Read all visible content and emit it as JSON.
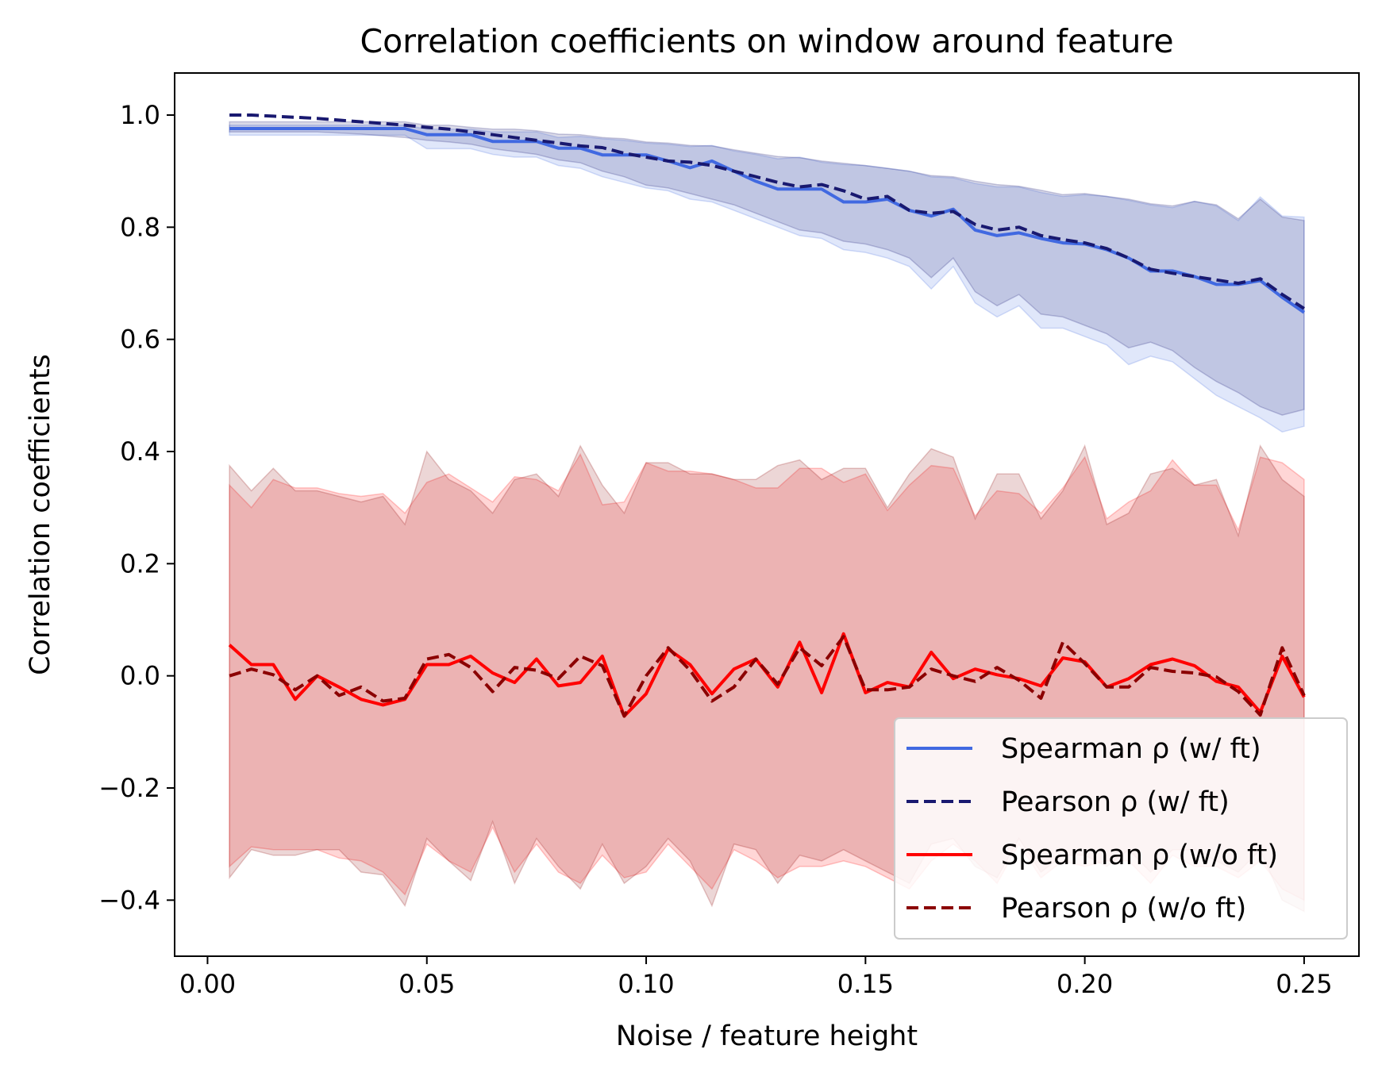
{
  "chart_data": {
    "type": "line",
    "title": "Correlation coefficients on window around feature",
    "xlabel": "Noise / feature height",
    "ylabel": "Correlation coefficients",
    "xlim": [
      -0.0075,
      0.2625
    ],
    "ylim": [
      -0.5,
      1.075
    ],
    "x_ticks": [
      0.0,
      0.05,
      0.1,
      0.15,
      0.2,
      0.25
    ],
    "x_tick_labels": [
      "0.00",
      "0.05",
      "0.10",
      "0.15",
      "0.20",
      "0.25"
    ],
    "y_ticks": [
      -0.4,
      -0.2,
      0.0,
      0.2,
      0.4,
      0.6,
      0.8,
      1.0
    ],
    "y_tick_labels": [
      "−0.4",
      "−0.2",
      "0.0",
      "0.2",
      "0.4",
      "0.6",
      "0.8",
      "1.0"
    ],
    "grid": false,
    "legend_position": "lower-right",
    "x": [
      0.005,
      0.01,
      0.015,
      0.02,
      0.025,
      0.03,
      0.035,
      0.04,
      0.045,
      0.05,
      0.055,
      0.06,
      0.065,
      0.07,
      0.075,
      0.08,
      0.085,
      0.09,
      0.095,
      0.1,
      0.105,
      0.11,
      0.115,
      0.12,
      0.125,
      0.13,
      0.135,
      0.14,
      0.145,
      0.15,
      0.155,
      0.16,
      0.165,
      0.17,
      0.175,
      0.18,
      0.185,
      0.19,
      0.195,
      0.2,
      0.205,
      0.21,
      0.215,
      0.22,
      0.225,
      0.23,
      0.235,
      0.24,
      0.245,
      0.25
    ],
    "series": [
      {
        "name": "Spearman ρ (w/ ft)",
        "color": "#4169e1",
        "dash": "solid",
        "values": [
          0.976,
          0.976,
          0.976,
          0.976,
          0.976,
          0.976,
          0.976,
          0.976,
          0.976,
          0.965,
          0.965,
          0.965,
          0.953,
          0.953,
          0.953,
          0.941,
          0.941,
          0.929,
          0.929,
          0.929,
          0.918,
          0.906,
          0.918,
          0.9,
          0.882,
          0.868,
          0.868,
          0.868,
          0.845,
          0.845,
          0.85,
          0.83,
          0.82,
          0.832,
          0.795,
          0.785,
          0.79,
          0.78,
          0.772,
          0.77,
          0.76,
          0.745,
          0.722,
          0.722,
          0.712,
          0.698,
          0.698,
          0.705,
          0.675,
          0.648
        ],
        "band_upper": [
          0.982,
          0.982,
          0.982,
          0.982,
          0.982,
          0.982,
          0.982,
          0.982,
          0.982,
          0.975,
          0.975,
          0.975,
          0.97,
          0.97,
          0.97,
          0.96,
          0.962,
          0.958,
          0.955,
          0.95,
          0.948,
          0.944,
          0.946,
          0.936,
          0.93,
          0.922,
          0.925,
          0.916,
          0.912,
          0.91,
          0.905,
          0.9,
          0.89,
          0.888,
          0.878,
          0.872,
          0.872,
          0.862,
          0.855,
          0.858,
          0.855,
          0.848,
          0.84,
          0.835,
          0.846,
          0.838,
          0.812,
          0.854,
          0.82,
          0.818
        ],
        "band_lower": [
          0.964,
          0.964,
          0.964,
          0.964,
          0.964,
          0.964,
          0.964,
          0.964,
          0.964,
          0.94,
          0.94,
          0.94,
          0.93,
          0.925,
          0.925,
          0.91,
          0.905,
          0.89,
          0.88,
          0.87,
          0.865,
          0.85,
          0.845,
          0.83,
          0.815,
          0.8,
          0.785,
          0.78,
          0.76,
          0.755,
          0.745,
          0.73,
          0.69,
          0.73,
          0.665,
          0.64,
          0.66,
          0.62,
          0.62,
          0.605,
          0.59,
          0.555,
          0.57,
          0.56,
          0.53,
          0.5,
          0.48,
          0.46,
          0.435,
          0.445
        ]
      },
      {
        "name": "Pearson ρ (w/ ft)",
        "color": "#191970",
        "dash": "dashed",
        "values": [
          1.0,
          1.0,
          0.998,
          0.996,
          0.994,
          0.991,
          0.988,
          0.985,
          0.982,
          0.978,
          0.975,
          0.97,
          0.965,
          0.96,
          0.955,
          0.95,
          0.945,
          0.942,
          0.932,
          0.925,
          0.918,
          0.916,
          0.91,
          0.9,
          0.89,
          0.88,
          0.872,
          0.876,
          0.865,
          0.85,
          0.855,
          0.83,
          0.825,
          0.828,
          0.805,
          0.795,
          0.8,
          0.785,
          0.778,
          0.772,
          0.762,
          0.745,
          0.725,
          0.718,
          0.712,
          0.706,
          0.7,
          0.708,
          0.68,
          0.655
        ],
        "band_upper": [
          0.988,
          0.988,
          0.988,
          0.988,
          0.988,
          0.988,
          0.988,
          0.988,
          0.988,
          0.982,
          0.982,
          0.978,
          0.975,
          0.975,
          0.972,
          0.966,
          0.965,
          0.96,
          0.958,
          0.952,
          0.95,
          0.946,
          0.945,
          0.938,
          0.932,
          0.926,
          0.924,
          0.918,
          0.914,
          0.91,
          0.905,
          0.9,
          0.892,
          0.89,
          0.882,
          0.876,
          0.873,
          0.866,
          0.858,
          0.86,
          0.855,
          0.85,
          0.842,
          0.838,
          0.846,
          0.84,
          0.815,
          0.85,
          0.818,
          0.812
        ],
        "band_lower": [
          0.97,
          0.97,
          0.97,
          0.97,
          0.97,
          0.968,
          0.966,
          0.963,
          0.96,
          0.955,
          0.952,
          0.948,
          0.94,
          0.935,
          0.93,
          0.92,
          0.915,
          0.9,
          0.89,
          0.875,
          0.87,
          0.86,
          0.85,
          0.84,
          0.825,
          0.81,
          0.795,
          0.79,
          0.775,
          0.77,
          0.76,
          0.745,
          0.71,
          0.745,
          0.685,
          0.66,
          0.68,
          0.645,
          0.64,
          0.625,
          0.61,
          0.585,
          0.595,
          0.58,
          0.55,
          0.525,
          0.505,
          0.48,
          0.465,
          0.475
        ]
      },
      {
        "name": "Spearman ρ (w/o ft)",
        "color": "#ff0000",
        "dash": "solid",
        "values": [
          0.055,
          0.02,
          0.02,
          -0.042,
          0.0,
          -0.02,
          -0.042,
          -0.052,
          -0.042,
          0.02,
          0.02,
          0.035,
          0.005,
          -0.012,
          0.03,
          -0.018,
          -0.012,
          0.035,
          -0.072,
          -0.032,
          0.048,
          0.02,
          -0.032,
          0.012,
          0.03,
          -0.02,
          0.06,
          -0.03,
          0.075,
          -0.03,
          -0.012,
          -0.02,
          0.042,
          -0.005,
          0.012,
          0.002,
          -0.005,
          -0.018,
          0.032,
          0.025,
          -0.02,
          -0.005,
          0.02,
          0.03,
          0.018,
          -0.01,
          -0.02,
          -0.065,
          0.035,
          -0.038
        ],
        "band_upper": [
          0.34,
          0.3,
          0.35,
          0.335,
          0.335,
          0.325,
          0.32,
          0.325,
          0.29,
          0.345,
          0.36,
          0.335,
          0.31,
          0.355,
          0.35,
          0.33,
          0.395,
          0.305,
          0.31,
          0.38,
          0.365,
          0.365,
          0.36,
          0.35,
          0.335,
          0.335,
          0.37,
          0.37,
          0.345,
          0.36,
          0.295,
          0.34,
          0.375,
          0.37,
          0.285,
          0.33,
          0.325,
          0.29,
          0.335,
          0.39,
          0.28,
          0.31,
          0.33,
          0.385,
          0.34,
          0.34,
          0.26,
          0.39,
          0.38,
          0.35
        ],
        "band_lower": [
          -0.34,
          -0.305,
          -0.31,
          -0.31,
          -0.31,
          -0.325,
          -0.33,
          -0.35,
          -0.39,
          -0.3,
          -0.33,
          -0.35,
          -0.27,
          -0.35,
          -0.3,
          -0.35,
          -0.37,
          -0.32,
          -0.36,
          -0.35,
          -0.3,
          -0.34,
          -0.38,
          -0.31,
          -0.33,
          -0.36,
          -0.34,
          -0.34,
          -0.33,
          -0.34,
          -0.36,
          -0.38,
          -0.33,
          -0.3,
          -0.33,
          -0.37,
          -0.3,
          -0.36,
          -0.33,
          -0.34,
          -0.33,
          -0.33,
          -0.37,
          -0.32,
          -0.34,
          -0.34,
          -0.36,
          -0.33,
          -0.38,
          -0.4
        ]
      },
      {
        "name": "Pearson ρ (w/o ft)",
        "color": "#8b0000",
        "dash": "dashed",
        "values": [
          0.0,
          0.012,
          0.002,
          -0.025,
          0.0,
          -0.035,
          -0.02,
          -0.045,
          -0.04,
          0.03,
          0.038,
          0.015,
          -0.028,
          0.015,
          0.01,
          -0.005,
          0.035,
          0.018,
          -0.072,
          0.0,
          0.05,
          0.01,
          -0.045,
          -0.02,
          0.03,
          -0.015,
          0.05,
          0.018,
          0.07,
          -0.025,
          -0.025,
          -0.02,
          0.012,
          0.0,
          -0.01,
          0.015,
          -0.008,
          -0.04,
          0.06,
          0.022,
          -0.02,
          -0.02,
          0.015,
          0.008,
          0.005,
          -0.002,
          -0.028,
          -0.07,
          0.05,
          -0.035
        ],
        "band_upper": [
          0.375,
          0.33,
          0.37,
          0.33,
          0.33,
          0.32,
          0.31,
          0.32,
          0.27,
          0.4,
          0.35,
          0.33,
          0.29,
          0.35,
          0.36,
          0.32,
          0.41,
          0.34,
          0.29,
          0.38,
          0.38,
          0.36,
          0.36,
          0.35,
          0.35,
          0.375,
          0.385,
          0.35,
          0.37,
          0.37,
          0.3,
          0.36,
          0.405,
          0.39,
          0.28,
          0.36,
          0.36,
          0.28,
          0.33,
          0.41,
          0.27,
          0.29,
          0.36,
          0.37,
          0.34,
          0.35,
          0.25,
          0.41,
          0.35,
          0.32
        ],
        "band_lower": [
          -0.36,
          -0.31,
          -0.32,
          -0.32,
          -0.31,
          -0.31,
          -0.35,
          -0.355,
          -0.41,
          -0.29,
          -0.33,
          -0.365,
          -0.26,
          -0.37,
          -0.29,
          -0.34,
          -0.38,
          -0.3,
          -0.37,
          -0.34,
          -0.29,
          -0.33,
          -0.41,
          -0.3,
          -0.31,
          -0.37,
          -0.32,
          -0.33,
          -0.31,
          -0.33,
          -0.35,
          -0.37,
          -0.3,
          -0.29,
          -0.34,
          -0.36,
          -0.29,
          -0.35,
          -0.32,
          -0.32,
          -0.34,
          -0.31,
          -0.35,
          -0.31,
          -0.31,
          -0.33,
          -0.35,
          -0.31,
          -0.4,
          -0.42
        ]
      }
    ],
    "band_colors": [
      "#4169e1",
      "#191970",
      "#ff0000",
      "#8b0000"
    ]
  }
}
